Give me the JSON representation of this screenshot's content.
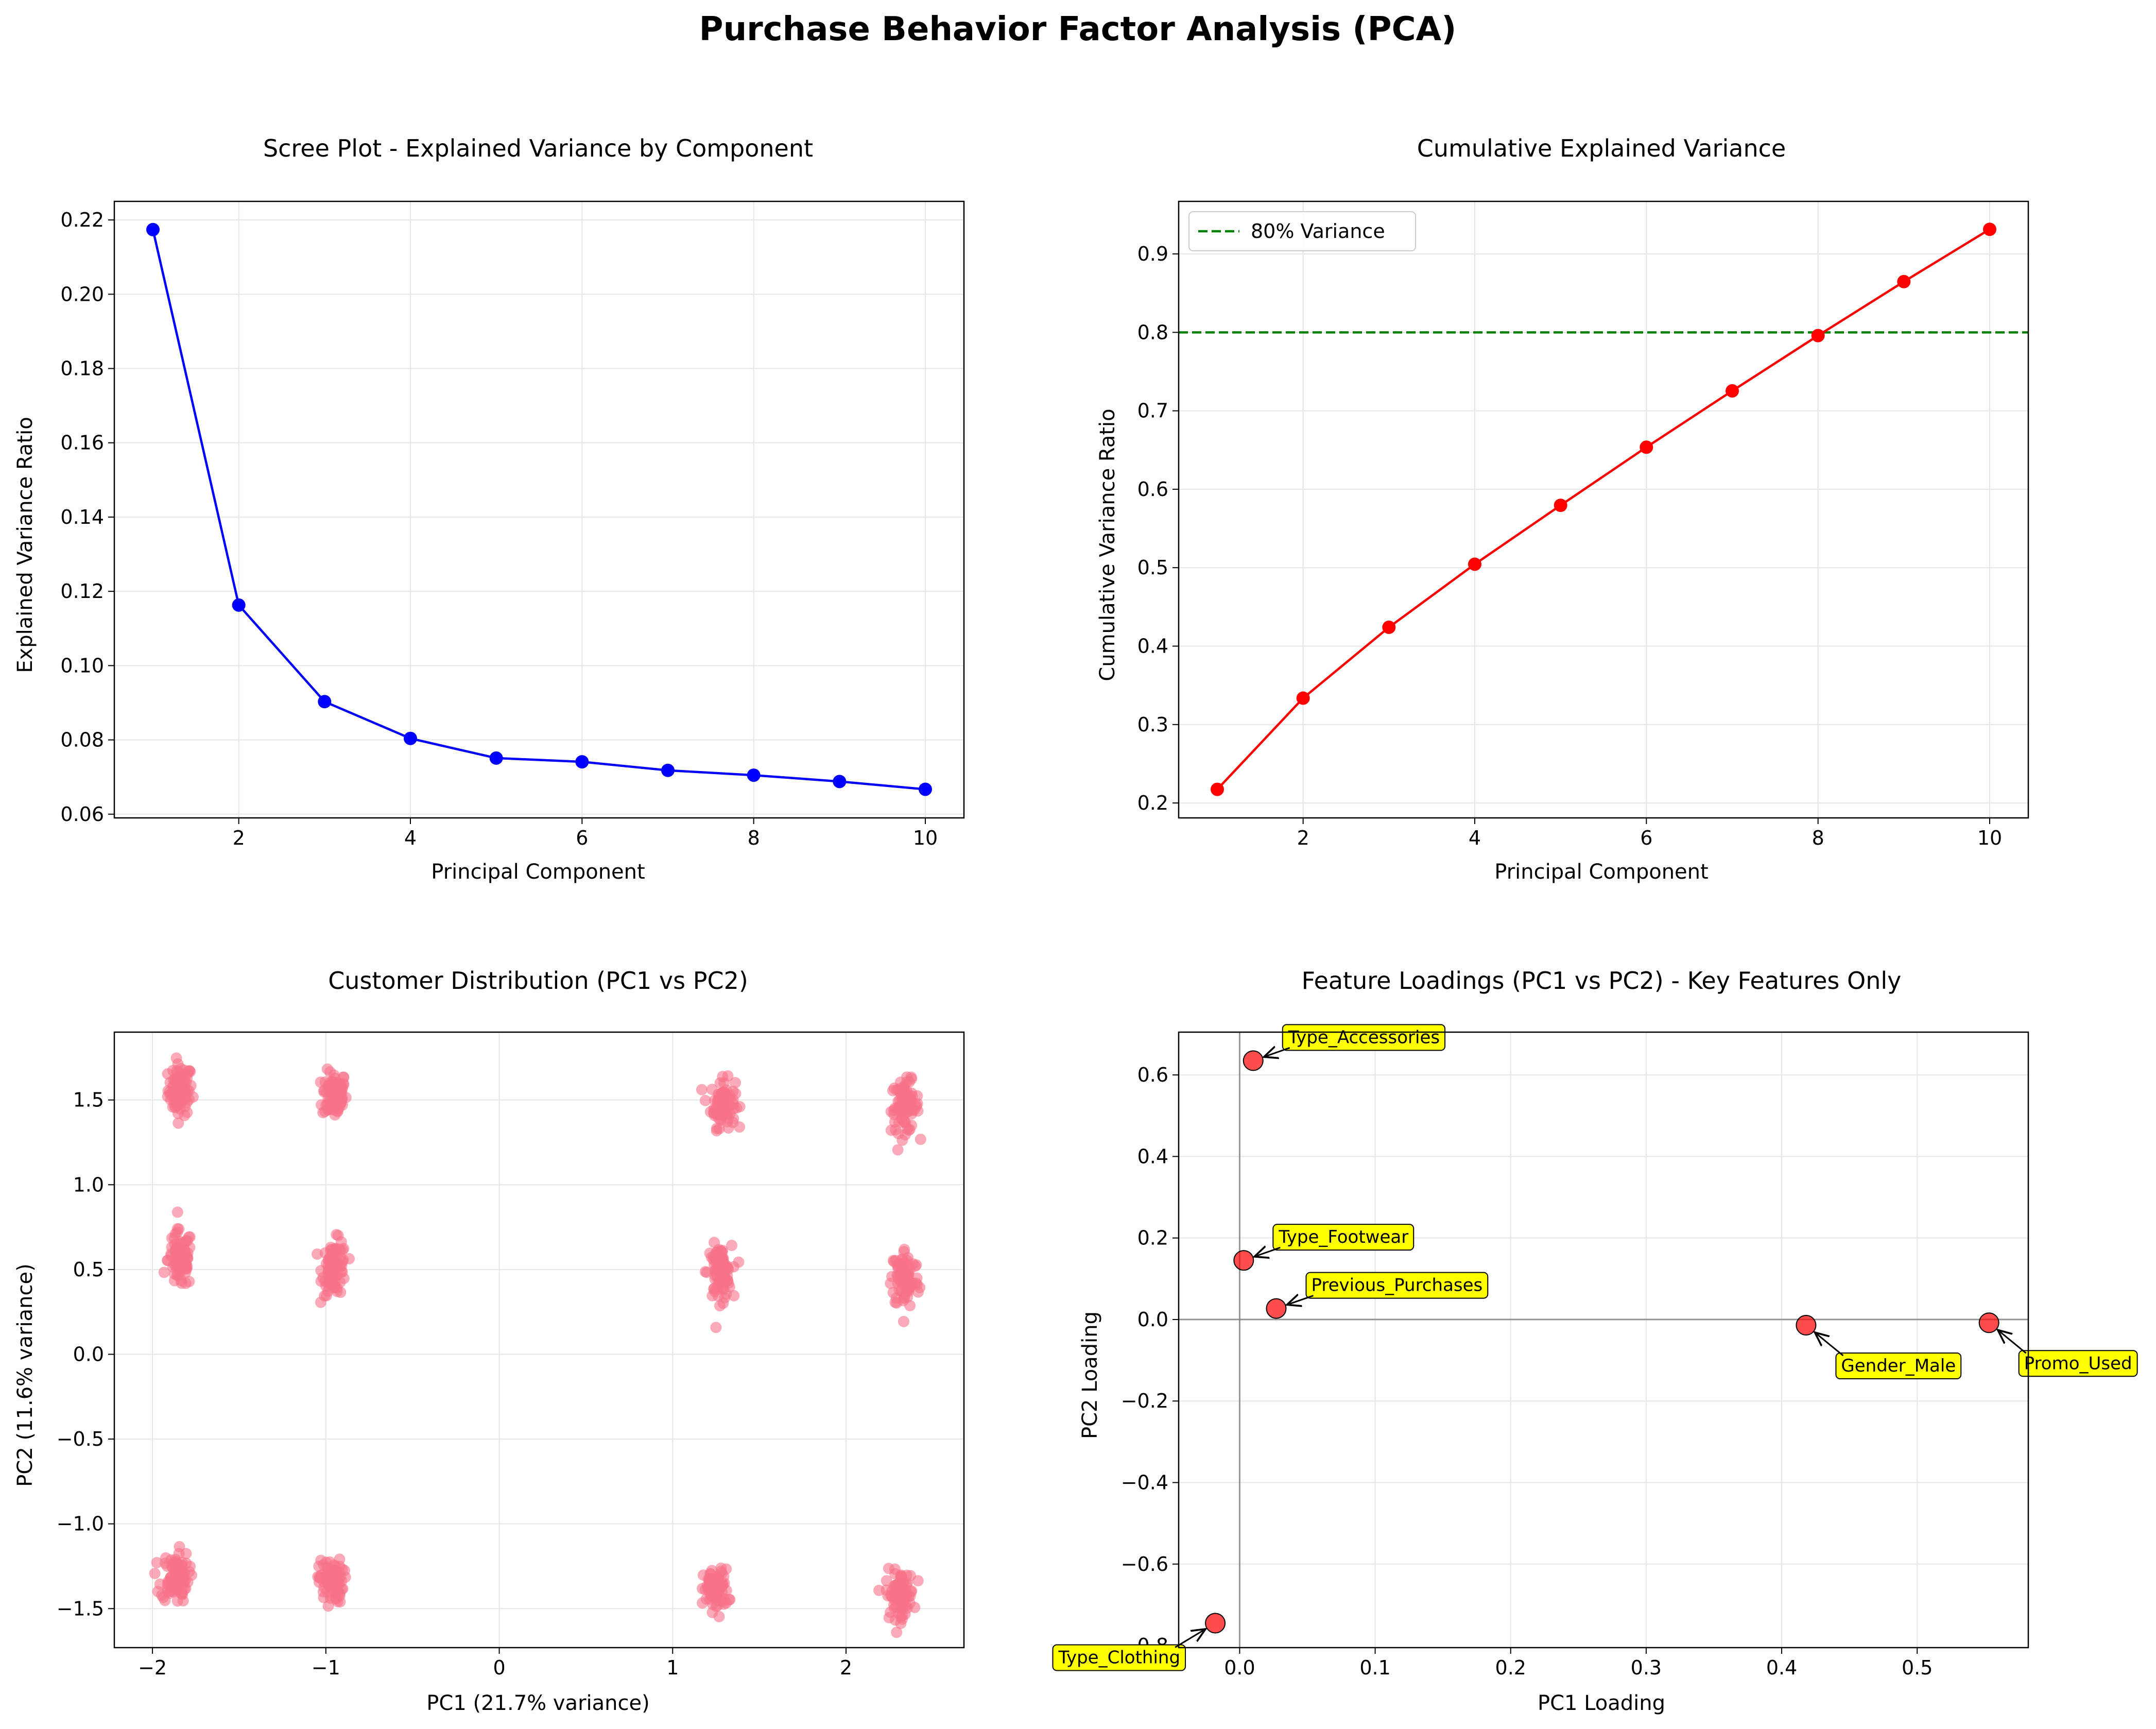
{
  "suptitle": "Purchase Behavior Factor Analysis (PCA)",
  "colors": {
    "scree": "#0000ff",
    "cumulative": "#ff0000",
    "threshold": "#008000",
    "scatter": "#f77189",
    "loading_point": "#ff0000",
    "annotation_box": "#ffff00",
    "grid": "#e6e6e6",
    "reference_line": "#808080"
  },
  "chart_data": [
    {
      "type": "line",
      "title": "Scree Plot - Explained Variance by Component",
      "xlabel": "Principal Component",
      "ylabel": "Explained Variance Ratio",
      "x": [
        1,
        2,
        3,
        4,
        5,
        6,
        7,
        8,
        9,
        10
      ],
      "values": [
        0.2174,
        0.1163,
        0.0903,
        0.0804,
        0.0751,
        0.0741,
        0.0718,
        0.0705,
        0.0688,
        0.0667
      ],
      "xlim": [
        0.55,
        10.45
      ],
      "ylim": [
        0.059,
        0.225
      ],
      "xticks": [
        2,
        4,
        6,
        8,
        10
      ],
      "yticks": [
        0.06,
        0.08,
        0.1,
        0.12,
        0.14,
        0.16,
        0.18,
        0.2,
        0.22
      ],
      "xtick_labels": [
        "2",
        "4",
        "6",
        "8",
        "10"
      ],
      "ytick_labels": [
        "0.06",
        "0.08",
        "0.10",
        "0.12",
        "0.14",
        "0.16",
        "0.18",
        "0.20",
        "0.22"
      ],
      "grid": true
    },
    {
      "type": "line",
      "title": "Cumulative Explained Variance",
      "xlabel": "Principal Component",
      "ylabel": "Cumulative Variance Ratio",
      "x": [
        1,
        2,
        3,
        4,
        5,
        6,
        7,
        8,
        9,
        10
      ],
      "values": [
        0.2174,
        0.3337,
        0.424,
        0.5044,
        0.5795,
        0.6536,
        0.7254,
        0.7959,
        0.8647,
        0.9314
      ],
      "threshold": {
        "y": 0.8,
        "label": "80% Variance"
      },
      "legend_position": "top-left",
      "xlim": [
        0.55,
        10.45
      ],
      "ylim": [
        0.181,
        0.967
      ],
      "xticks": [
        2,
        4,
        6,
        8,
        10
      ],
      "yticks": [
        0.2,
        0.3,
        0.4,
        0.5,
        0.6,
        0.7,
        0.8,
        0.9
      ],
      "xtick_labels": [
        "2",
        "4",
        "6",
        "8",
        "10"
      ],
      "ytick_labels": [
        "0.2",
        "0.3",
        "0.4",
        "0.5",
        "0.6",
        "0.7",
        "0.8",
        "0.9"
      ],
      "grid": true
    },
    {
      "type": "scatter",
      "title": "Customer Distribution (PC1 vs PC2)",
      "xlabel": "PC1 (21.7% variance)",
      "ylabel": "PC2 (11.6% variance)",
      "clusters": [
        {
          "x": -1.84,
          "y": 1.56,
          "sx": 0.035,
          "sy": 0.075
        },
        {
          "x": -0.95,
          "y": 1.53,
          "sx": 0.035,
          "sy": 0.07
        },
        {
          "x": 1.29,
          "y": 1.48,
          "sx": 0.035,
          "sy": 0.07
        },
        {
          "x": 2.34,
          "y": 1.46,
          "sx": 0.04,
          "sy": 0.075
        },
        {
          "x": -1.84,
          "y": 0.56,
          "sx": 0.035,
          "sy": 0.085
        },
        {
          "x": -0.95,
          "y": 0.51,
          "sx": 0.035,
          "sy": 0.08
        },
        {
          "x": 1.27,
          "y": 0.48,
          "sx": 0.035,
          "sy": 0.08
        },
        {
          "x": 2.34,
          "y": 0.45,
          "sx": 0.04,
          "sy": 0.09
        },
        {
          "x": -1.87,
          "y": -1.31,
          "sx": 0.04,
          "sy": 0.075
        },
        {
          "x": -0.97,
          "y": -1.34,
          "sx": 0.035,
          "sy": 0.065
        },
        {
          "x": 1.25,
          "y": -1.39,
          "sx": 0.035,
          "sy": 0.06
        },
        {
          "x": 2.31,
          "y": -1.42,
          "sx": 0.04,
          "sy": 0.07
        }
      ],
      "xlim": [
        -2.22,
        2.68
      ],
      "ylim": [
        -1.73,
        1.9
      ],
      "xticks": [
        -2,
        -1,
        0,
        1,
        2
      ],
      "yticks": [
        -1.5,
        -1.0,
        -0.5,
        0.0,
        0.5,
        1.0,
        1.5
      ],
      "xtick_labels": [
        "−2",
        "−1",
        "0",
        "1",
        "2"
      ],
      "ytick_labels": [
        "−1.5",
        "−1.0",
        "−0.5",
        "0.0",
        "0.5",
        "1.0",
        "1.5"
      ],
      "grid": true
    },
    {
      "type": "scatter",
      "title": "Feature Loadings (PC1 vs PC2) - Key Features Only",
      "xlabel": "PC1 Loading",
      "ylabel": "PC2 Loading",
      "points": [
        {
          "label": "Type_Accessories",
          "x": 0.01,
          "y": 0.635
        },
        {
          "label": "Type_Footwear",
          "x": 0.003,
          "y": 0.145
        },
        {
          "label": "Previous_Purchases",
          "x": 0.027,
          "y": 0.027
        },
        {
          "label": "Gender_Male",
          "x": 0.418,
          "y": -0.014
        },
        {
          "label": "Promo_Used",
          "x": 0.553,
          "y": -0.008
        },
        {
          "label": "Type_Clothing",
          "x": -0.018,
          "y": -0.745
        }
      ],
      "xlim": [
        -0.045,
        0.582
      ],
      "ylim": [
        -0.805,
        0.705
      ],
      "xticks": [
        0.0,
        0.1,
        0.2,
        0.3,
        0.4,
        0.5
      ],
      "yticks": [
        -0.6,
        -0.4,
        -0.2,
        0.0,
        0.2,
        0.4,
        0.6
      ],
      "xtick_labels": [
        "0.0",
        "0.1",
        "0.2",
        "0.3",
        "0.4",
        "0.5"
      ],
      "ytick_labels": [
        "−0.6",
        "−0.4",
        "−0.2",
        "0.0",
        "0.2",
        "0.4",
        "0.6"
      ],
      "hidden_ytick_label": "−0.8",
      "grid": true
    }
  ]
}
